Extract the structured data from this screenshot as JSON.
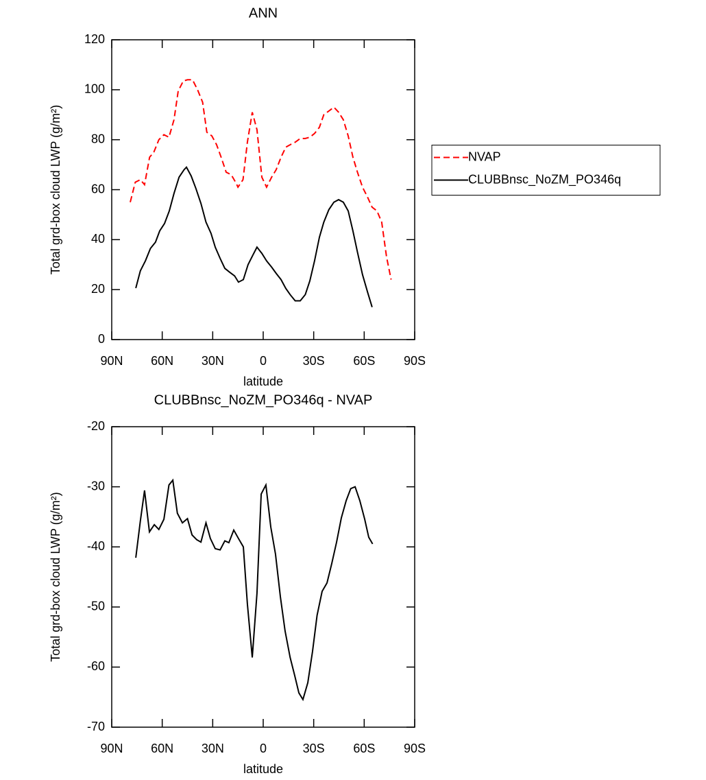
{
  "chart_data": [
    {
      "type": "line",
      "title": "ANN",
      "x_label": "latitude",
      "y_label": "Total grd-box cloud LWP (g/m²)",
      "xlim": [
        90,
        -90
      ],
      "xticks": [
        {
          "value": 90,
          "label": "90N"
        },
        {
          "value": 60,
          "label": "60N"
        },
        {
          "value": 30,
          "label": "30N"
        },
        0,
        {
          "value": -30,
          "label": "30S"
        },
        {
          "value": -60,
          "label": "60S"
        },
        {
          "value": -90,
          "label": "90S"
        }
      ],
      "ylim": [
        0,
        120
      ],
      "yticks": [
        0,
        20,
        40,
        60,
        80,
        100,
        120
      ],
      "legend": "right",
      "series": [
        {
          "name": "NVAP",
          "color": "#ff0000",
          "line_style": "dashed",
          "x": [
            79,
            76,
            73,
            70.5,
            67.5,
            65,
            62,
            59,
            56,
            53,
            50.5,
            47.5,
            45,
            42,
            39,
            36,
            33.5,
            30.5,
            27.7,
            25,
            22,
            19,
            16,
            15,
            12,
            9.4,
            6.5,
            3.7,
            0.8,
            -2,
            -5,
            -7.7,
            -10.6,
            -13.4,
            -16,
            -19,
            -22,
            -25,
            -27.7,
            -30.5,
            -33.4,
            -36,
            -39,
            -42,
            -44.8,
            -47.6,
            -50.5,
            -53.3,
            -56,
            -59,
            -62,
            -64.7,
            -67.6,
            -70.4,
            -73.3,
            -76
          ],
          "values": [
            55,
            63,
            64,
            62,
            73,
            75,
            80,
            82,
            81,
            88,
            99.5,
            103.5,
            104,
            104,
            100,
            95,
            83,
            81.5,
            78,
            73,
            67,
            66,
            62.5,
            61,
            64,
            79,
            91,
            84,
            65,
            61,
            65,
            68,
            73,
            77,
            78,
            79,
            80.5,
            80.5,
            81,
            82.5,
            85,
            90,
            91.5,
            93,
            91,
            88,
            81.5,
            73,
            67,
            61,
            57,
            53,
            51.5,
            47,
            33,
            24
          ]
        },
        {
          "name": "CLUBBnsc_NoZM_PO346q",
          "color": "#000000",
          "line_style": "solid",
          "x": [
            75.7,
            73,
            70,
            67,
            64,
            61.5,
            58.6,
            55.8,
            53,
            50,
            47,
            45.6,
            42.8,
            40,
            37,
            34,
            31,
            28.5,
            25.6,
            22.8,
            20,
            17,
            14.7,
            11.8,
            9,
            6,
            3.7,
            0.8,
            -2,
            -5,
            -7.7,
            -10.6,
            -13.4,
            -16,
            -19,
            -22,
            -25,
            -27.7,
            -30.5,
            -33.4,
            -36,
            -39,
            -42,
            -44.8,
            -47.6,
            -50.5,
            -53.3,
            -56,
            -59,
            -62,
            -64.7
          ],
          "values": [
            20.6,
            27.5,
            31.5,
            36.5,
            39,
            43.5,
            46.5,
            51.5,
            58.5,
            65,
            68,
            69,
            65.5,
            60.5,
            54.5,
            47,
            42.5,
            37,
            32.5,
            28.5,
            27,
            25.5,
            23,
            24,
            30,
            34,
            37,
            34.5,
            31.5,
            29,
            26.5,
            24,
            20.5,
            18,
            15.5,
            15.5,
            18,
            23.5,
            31.5,
            41,
            47,
            52,
            55,
            56,
            55,
            51.5,
            43.5,
            35,
            26,
            19,
            13
          ]
        }
      ]
    },
    {
      "type": "line",
      "title": "CLUBBnsc_NoZM_PO346q - NVAP",
      "x_label": "latitude",
      "y_label": "Total grd-box cloud LWP (g/m²)",
      "xlim": [
        90,
        -90
      ],
      "xticks": [
        {
          "value": 90,
          "label": "90N"
        },
        {
          "value": 60,
          "label": "60N"
        },
        {
          "value": 30,
          "label": "30N"
        },
        0,
        {
          "value": -30,
          "label": "30S"
        },
        {
          "value": -60,
          "label": "60S"
        },
        {
          "value": -90,
          "label": "90S"
        }
      ],
      "ylim": [
        -70,
        -20
      ],
      "yticks": [
        -70,
        -60,
        -50,
        -40,
        -30,
        -20
      ],
      "series": [
        {
          "color": "#000000",
          "line_style": "solid",
          "x": [
            75.7,
            73,
            70.5,
            67.6,
            64.7,
            62,
            59,
            56,
            53.7,
            51,
            48,
            45,
            42.3,
            39.5,
            37,
            34,
            31.4,
            28.5,
            25.6,
            22.8,
            20.4,
            17.5,
            14.7,
            11.8,
            9.4,
            6.5,
            3.7,
            1.2,
            -1.6,
            -4.5,
            -7.3,
            -10.2,
            -13,
            -16,
            -18.7,
            -21.2,
            -23.6,
            -26.5,
            -29.3,
            -32,
            -35,
            -37.9,
            -40.7,
            -43.6,
            -46.4,
            -49.3,
            -52,
            -54.6,
            -57.4,
            -60.3,
            -62.7,
            -65
          ],
          "values": [
            -41.8,
            -35.7,
            -30.6,
            -37.5,
            -36.3,
            -37.1,
            -35.4,
            -29.7,
            -28.9,
            -34.4,
            -36,
            -35.3,
            -38,
            -38.8,
            -39.2,
            -36,
            -38.6,
            -40.3,
            -40.5,
            -39,
            -39.3,
            -37.2,
            -38.6,
            -40,
            -49.5,
            -58.4,
            -47.7,
            -31.2,
            -29.7,
            -36.7,
            -41.2,
            -48.3,
            -54,
            -58.4,
            -61.4,
            -64.3,
            -65.4,
            -62.6,
            -57.4,
            -51.4,
            -47.4,
            -46,
            -42.8,
            -39.2,
            -35.2,
            -32.3,
            -30.3,
            -30,
            -32.3,
            -35.4,
            -38.4,
            -39.5
          ]
        }
      ]
    }
  ]
}
